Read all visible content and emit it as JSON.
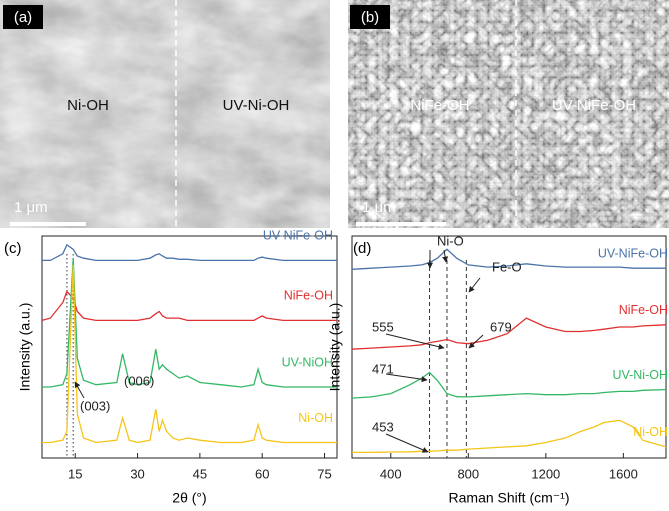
{
  "panels": [
    {
      "label": "(a)",
      "left": "Ni-OH",
      "right": "UV-Ni-OH",
      "scale_bar": "1 μm"
    },
    {
      "label": "(b)",
      "left": "NiFe-OH",
      "right": "UV-NiFe-OH",
      "scale_bar": "1 μm"
    }
  ],
  "chart_data": [
    {
      "type": "line",
      "panel_label": "(c)",
      "xlabel": "2θ (°)",
      "ylabel": "Intensity (a.u.)",
      "xlim": [
        7,
        78
      ],
      "xticks": [
        15,
        30,
        45,
        60,
        75
      ],
      "ylim": [
        0,
        100
      ],
      "x": [
        7,
        9,
        12,
        13,
        14.5,
        15.5,
        17,
        20,
        25,
        26.4,
        28,
        30,
        33,
        34.4,
        35.2,
        36,
        37,
        38.5,
        40,
        42,
        45,
        50,
        55,
        58,
        59,
        60,
        61,
        65,
        70,
        75,
        78
      ],
      "guide_lines": [
        13,
        14.5
      ],
      "annotations": [
        "(003)",
        "(006)"
      ],
      "series": [
        {
          "name": "UV-NiFe-OH",
          "color": "#4a74a8",
          "values": [
            89,
            89,
            92,
            96,
            94,
            91,
            90,
            89,
            89,
            89,
            89,
            89,
            90,
            91.5,
            92,
            91,
            90,
            90,
            89.5,
            89.5,
            89,
            89,
            89,
            89,
            90,
            90.5,
            90,
            89,
            89,
            89,
            89
          ]
        },
        {
          "name": "NiFe-OH",
          "color": "#e03030",
          "values": [
            62,
            63,
            70,
            75,
            72,
            66,
            63,
            62,
            62,
            62,
            62,
            62,
            63,
            65,
            66,
            64,
            63,
            63,
            63,
            62,
            62,
            62,
            62,
            62,
            63,
            64,
            63,
            62,
            62,
            62,
            62
          ]
        },
        {
          "name": "UV-NiOH",
          "color": "#33b865",
          "values": [
            32,
            32,
            33,
            38,
            90,
            45,
            35,
            33,
            34,
            47,
            34,
            33,
            34,
            49,
            40,
            42,
            40,
            38,
            36,
            37,
            34,
            33,
            32,
            33,
            40,
            34,
            33,
            32,
            32,
            32,
            32
          ]
        },
        {
          "name": "Ni-OH",
          "color": "#f5c518",
          "values": [
            7,
            7,
            8,
            12,
            87,
            20,
            9,
            7,
            8,
            18,
            8,
            7,
            8,
            22,
            12,
            17,
            12,
            9,
            8,
            9,
            8,
            7,
            7,
            8,
            15,
            9,
            8,
            7,
            7,
            7,
            7
          ]
        }
      ]
    },
    {
      "type": "line",
      "panel_label": "(d)",
      "xlabel": "Raman Shift (cm⁻¹)",
      "ylabel": "Intensity (a.u.)",
      "xlim": [
        200,
        1820
      ],
      "xticks": [
        400,
        800,
        1200,
        1600
      ],
      "ylim": [
        0,
        100
      ],
      "x": [
        200,
        300,
        400,
        500,
        560,
        600,
        640,
        690,
        740,
        800,
        900,
        1000,
        1100,
        1200,
        1300,
        1380,
        1450,
        1500,
        1580,
        1650,
        1700,
        1820
      ],
      "guide_lines": [
        600,
        690,
        790
      ],
      "annotations": [
        "Ni-O",
        "Fe-O",
        "555",
        "679",
        "471",
        "453"
      ],
      "series": [
        {
          "name": "UV-NiFe-OH",
          "color": "#4a74a8",
          "values": [
            85,
            85.5,
            86,
            86.5,
            87,
            88,
            90,
            94,
            90,
            87,
            86,
            86.5,
            87.5,
            86.5,
            86,
            86,
            86,
            86,
            86,
            85.5,
            85.5,
            85.5
          ]
        },
        {
          "name": "NiFe-OH",
          "color": "#e03030",
          "values": [
            49,
            49.5,
            50,
            50.5,
            51,
            52,
            52.5,
            53.4,
            52,
            51.5,
            53,
            56,
            63,
            59,
            57,
            57,
            57.5,
            58,
            59,
            59,
            59.5,
            60
          ]
        },
        {
          "name": "UV-Ni-OH",
          "color": "#33b865",
          "values": [
            27,
            27.5,
            29,
            33,
            36,
            38.5,
            35,
            29,
            27.6,
            27.5,
            28,
            28.5,
            29,
            28.5,
            28.5,
            29,
            29,
            29.5,
            30,
            30,
            30.5,
            30.8
          ]
        },
        {
          "name": "Ni-OH",
          "color": "#f5c518",
          "values": [
            2.5,
            2.5,
            2.7,
            2.8,
            3,
            3,
            3.2,
            3.5,
            3.5,
            4,
            4.5,
            5,
            5.5,
            7,
            9,
            12,
            14,
            16,
            17,
            14,
            8,
            5
          ]
        }
      ]
    }
  ]
}
